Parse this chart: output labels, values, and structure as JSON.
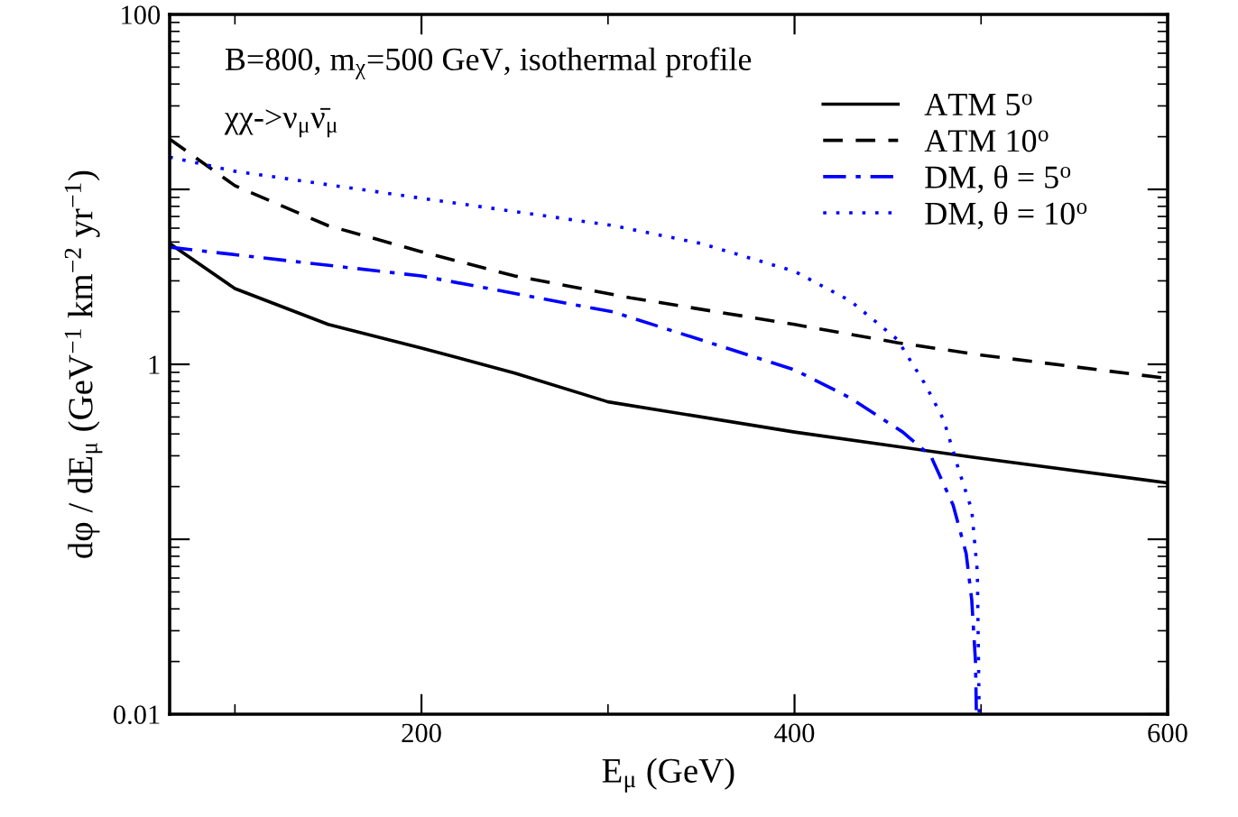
{
  "chart_data": {
    "type": "line",
    "xlabel": "E$_{μ}$ (GeV)",
    "ylabel": "dφ / dE$_{μ}$ (GeV$^{−1}$ km$^{−2}$ yr$^{−1}$)",
    "annotations": [
      "B=800, m$_{χ}$=500 GeV, isothermal profile",
      "χχ->ν$_{μ}$ν̄$_{μ}$"
    ],
    "log": "y",
    "xlim": [
      65,
      600
    ],
    "ylim": [
      0.01,
      100
    ],
    "xticks": [
      {
        "value": 100,
        "label": null
      },
      200,
      {
        "value": 300,
        "label": null
      },
      400,
      {
        "value": 500,
        "label": null
      },
      600
    ],
    "yticks": [
      0.01,
      {
        "value": 0.1,
        "label": null
      },
      1,
      {
        "value": 10,
        "label": null
      },
      100
    ],
    "grid": false,
    "legend": "top right",
    "series": [
      {
        "name": "ATM 5$^{o}$",
        "color": "#000000",
        "line_style": "solid",
        "x": [
          65,
          100,
          150,
          200,
          250,
          300,
          400,
          500,
          600
        ],
        "values": [
          4.9,
          2.71,
          1.69,
          1.24,
          0.89,
          0.61,
          0.41,
          0.29,
          0.21
        ]
      },
      {
        "name": "ATM 10$^{o}$",
        "color": "#000000",
        "line_style": "dashed",
        "x": [
          65,
          100,
          150,
          200,
          250,
          312,
          400,
          455,
          500,
          600
        ],
        "values": [
          19.4,
          10.5,
          6.2,
          4.4,
          3.2,
          2.4,
          1.69,
          1.33,
          1.13,
          0.83
        ]
      },
      {
        "name": "DM, θ = 5$^{o}$",
        "color": "#0000ff",
        "line_style": "dashdot",
        "x": [
          65,
          200,
          303,
          400,
          429,
          458,
          473,
          485,
          492,
          495,
          497,
          497.5
        ],
        "values": [
          4.67,
          3.2,
          1.99,
          0.93,
          0.65,
          0.41,
          0.3,
          0.157,
          0.083,
          0.045,
          0.02,
          0.01
        ]
      },
      {
        "name": "DM, θ = 10$^{o}$",
        "color": "#0000ff",
        "line_style": "dotted",
        "x": [
          65,
          100,
          200,
          303,
          350,
          400,
          430,
          455,
          470,
          480,
          488,
          495,
          498,
          499
        ],
        "values": [
          15.3,
          12.7,
          8.9,
          6.2,
          4.9,
          3.4,
          2.3,
          1.39,
          0.77,
          0.48,
          0.25,
          0.147,
          0.065,
          0.01
        ]
      }
    ]
  }
}
